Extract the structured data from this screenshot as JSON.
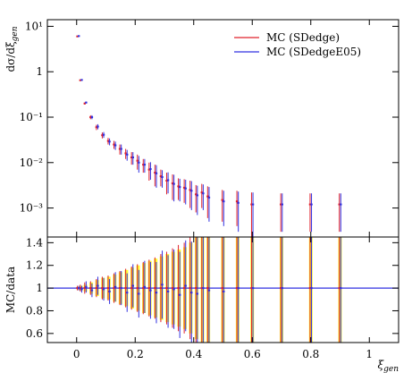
{
  "chart_data": [
    {
      "type": "scatter",
      "y_label": "dσ/dξ",
      "y_label_sub": "gen",
      "log_y": true,
      "xlim": [
        -0.1,
        1.1
      ],
      "xticks": [
        0,
        0.2,
        0.4,
        0.6,
        0.8,
        1
      ],
      "x_tick_labels": false,
      "ylim": [
        0.00023,
        14
      ],
      "yticks": [
        {
          "value": 0.001,
          "label": "10⁻³"
        },
        {
          "value": 0.01,
          "label": "10⁻²"
        },
        {
          "value": 0.1,
          "label": "10⁻¹"
        },
        1,
        {
          "value": 10,
          "label": "10¹"
        }
      ],
      "legend": "top-right",
      "x": [
        0.005,
        0.015,
        0.03,
        0.05,
        0.07,
        0.09,
        0.11,
        0.13,
        0.15,
        0.17,
        0.19,
        0.21,
        0.23,
        0.25,
        0.27,
        0.29,
        0.31,
        0.33,
        0.35,
        0.37,
        0.39,
        0.41,
        0.43,
        0.45,
        0.5,
        0.55,
        0.6,
        0.7,
        0.8,
        0.9
      ],
      "series": [
        {
          "name": "MC (SDedge)",
          "color": "#e0202a",
          "values": [
            6,
            0.65,
            0.2,
            0.1,
            0.06,
            0.04,
            0.03,
            0.025,
            0.02,
            0.016,
            0.013,
            0.011,
            0.009,
            0.007,
            0.006,
            0.005,
            0.004,
            0.0035,
            0.003,
            0.0028,
            0.0025,
            0.002,
            0.0022,
            0.0018,
            0.0015,
            0.0014,
            0.0012,
            0.0012,
            0.0012,
            0.0012
          ],
          "errors": [
            0.05,
            0.01,
            0.01,
            0.01,
            0.008,
            0.006,
            0.005,
            0.005,
            0.005,
            0.004,
            0.004,
            0.004,
            0.003,
            0.003,
            0.003,
            0.002,
            0.002,
            0.002,
            0.0015,
            0.0015,
            0.0015,
            0.0012,
            0.0012,
            0.0012,
            0.001,
            0.001,
            0.001,
            0.0009,
            0.0009,
            0.0009
          ]
        },
        {
          "name": "MC (SDedgeE05)",
          "color": "#3030e0",
          "values": [
            6.1,
            0.66,
            0.21,
            0.1,
            0.062,
            0.041,
            0.029,
            0.024,
            0.02,
            0.015,
            0.013,
            0.01,
            0.009,
            0.0072,
            0.0058,
            0.0048,
            0.0041,
            0.0034,
            0.0029,
            0.0027,
            0.0024,
            0.0019,
            0.0021,
            0.0017,
            0.0014,
            0.0013,
            0.0012,
            0.0012,
            0.0012,
            0.0012
          ],
          "errors": [
            0.05,
            0.01,
            0.01,
            0.01,
            0.008,
            0.006,
            0.005,
            0.005,
            0.005,
            0.004,
            0.004,
            0.004,
            0.003,
            0.003,
            0.003,
            0.002,
            0.002,
            0.002,
            0.0015,
            0.0015,
            0.0015,
            0.0012,
            0.0012,
            0.0012,
            0.001,
            0.001,
            0.001,
            0.0009,
            0.0009,
            0.0009
          ]
        }
      ]
    },
    {
      "type": "ratio",
      "y_label": "MC/data",
      "x_label": "ξ",
      "x_label_sub": "gen",
      "xlim": [
        -0.1,
        1.1
      ],
      "xticks": [
        0,
        0.2,
        0.4,
        0.6,
        0.8,
        1
      ],
      "x_tick_labels": true,
      "ylim": [
        0.52,
        1.45
      ],
      "yticks": [
        0.6,
        0.8,
        1,
        1.2,
        1.4
      ],
      "reference_line": 1,
      "band_color": "#ffff33",
      "x": [
        0.005,
        0.015,
        0.03,
        0.05,
        0.07,
        0.09,
        0.11,
        0.13,
        0.15,
        0.17,
        0.19,
        0.21,
        0.23,
        0.25,
        0.27,
        0.29,
        0.31,
        0.33,
        0.35,
        0.37,
        0.39,
        0.41,
        0.43,
        0.45,
        0.5,
        0.55,
        0.6,
        0.7,
        0.8,
        0.9
      ],
      "band_errors": [
        0.01,
        0.02,
        0.03,
        0.05,
        0.07,
        0.09,
        0.1,
        0.12,
        0.14,
        0.16,
        0.18,
        0.2,
        0.22,
        0.24,
        0.26,
        0.28,
        0.3,
        0.32,
        0.34,
        0.36,
        0.4,
        0.45,
        0.5,
        0.5,
        0.5,
        0.5,
        0.5,
        0.5,
        0.5,
        0.5
      ],
      "series": [
        {
          "name": "MC (SDedge)",
          "color": "#e0202a",
          "values": [
            1,
            1,
            1,
            1,
            1,
            1,
            1,
            1,
            1,
            1,
            1,
            1,
            1,
            1,
            1,
            1,
            1,
            1,
            1,
            1,
            1,
            1,
            1,
            1,
            1,
            1,
            1,
            1,
            1,
            1
          ],
          "errors": [
            0.02,
            0.03,
            0.05,
            0.06,
            0.08,
            0.1,
            0.11,
            0.13,
            0.15,
            0.17,
            0.19,
            0.21,
            0.23,
            0.25,
            0.27,
            0.3,
            0.32,
            0.35,
            0.38,
            0.4,
            0.45,
            0.5,
            0.5,
            0.5,
            0.5,
            0.5,
            0.5,
            0.5,
            0.5,
            0.5
          ]
        },
        {
          "name": "MC (SDedgeE05)",
          "color": "#3030e0",
          "values": [
            1,
            0.99,
            1.01,
            0.98,
            1.02,
            0.99,
            0.97,
            1.01,
            1,
            0.96,
            1.02,
            0.95,
            1.01,
            0.98,
            0.96,
            1.03,
            0.97,
            0.99,
            0.94,
            1.02,
            0.96,
            0.95,
            1,
            0.98,
            0.97,
            1,
            1,
            1,
            1,
            1
          ],
          "errors": [
            0.02,
            0.03,
            0.05,
            0.06,
            0.08,
            0.1,
            0.11,
            0.13,
            0.15,
            0.17,
            0.19,
            0.21,
            0.23,
            0.25,
            0.27,
            0.3,
            0.32,
            0.35,
            0.38,
            0.4,
            0.45,
            0.5,
            0.5,
            0.5,
            0.5,
            0.5,
            0.5,
            0.5,
            0.5,
            0.5
          ]
        }
      ]
    }
  ]
}
